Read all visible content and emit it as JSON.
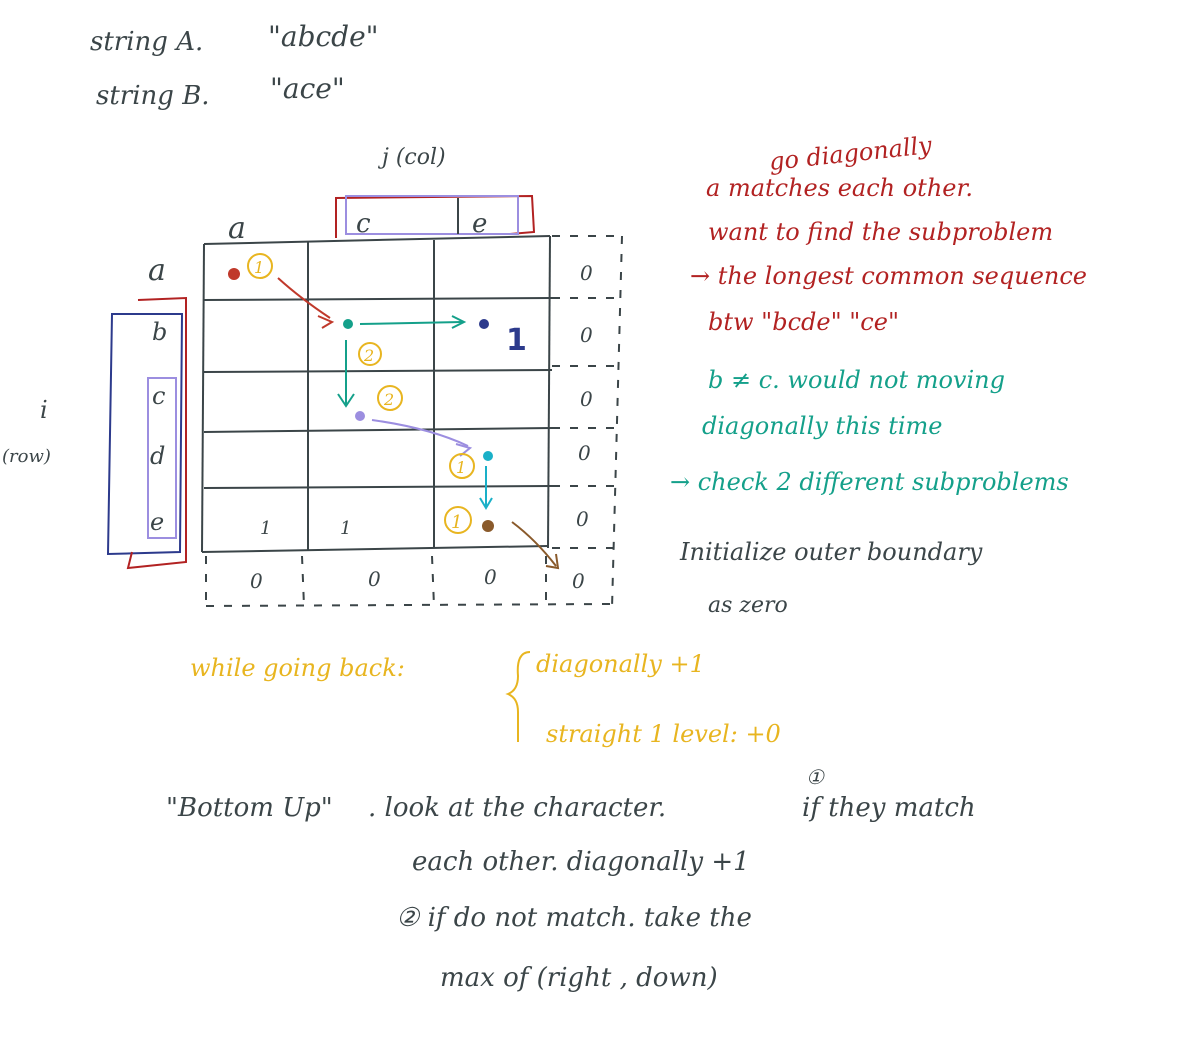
{
  "header": {
    "string_a_label": "string A.",
    "string_a_value": "\"abcde\"",
    "string_b_label": "string B.",
    "string_b_value": "\"ace\""
  },
  "grid": {
    "col_axis_label": "j (col)",
    "row_axis_label_i": "i",
    "row_axis_label_row": "(row)",
    "col_chars": [
      "a",
      "c",
      "e"
    ],
    "row_chars": [
      "a",
      "b",
      "c",
      "d",
      "e"
    ],
    "right_boundary": [
      "0",
      "0",
      "0",
      "0",
      "0"
    ],
    "bottom_boundary": [
      "0",
      "0",
      "0",
      "0"
    ],
    "cell_values": [
      "1",
      "1",
      "1"
    ],
    "step_markers": [
      "1",
      "2",
      "2",
      "1",
      "1"
    ]
  },
  "notes": {
    "red_lines": [
      "go diagonally",
      "a matches each other.",
      "want to find the subproblem",
      "→ the longest common sequence",
      "btw \"bcde\" \"ce\""
    ],
    "teal_lines": [
      "b ≠ c. would not moving",
      "diagonally this time",
      "→ check 2 different subproblems"
    ],
    "dark_lines": [
      "Initialize outer boundary",
      "as zero"
    ],
    "gold_going_back": "while going back:",
    "gold_diag": "diagonally +1",
    "gold_straight": "straight 1 level: +0",
    "bottom_label": "\"Bottom Up\"",
    "bottom_rule1": ". look at the character.",
    "bottom_rule1_marker": "①",
    "bottom_rule1_tail": "if they match",
    "bottom_rule1b": "each other. diagonally +1",
    "bottom_rule2": "② if do not match. take the",
    "bottom_rule2b": "max of (right , down)"
  },
  "colors": {
    "ink": "#3b4548",
    "red": "#b22222",
    "teal": "#14a08a",
    "gold": "#e8b520",
    "blue": "#2c3a8c",
    "lavender": "#9c8ee0",
    "brown": "#8a5a2b"
  }
}
